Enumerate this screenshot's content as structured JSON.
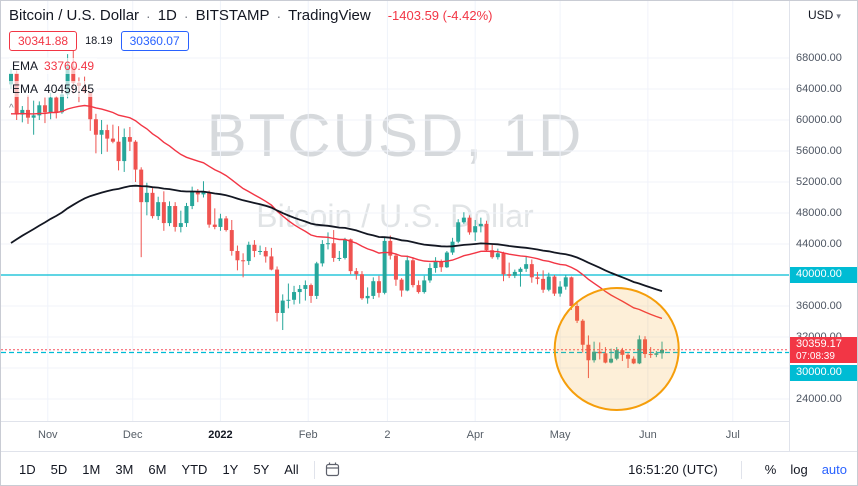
{
  "header": {
    "symbol_title": "Bitcoin / U.S. Dollar",
    "separator": "·",
    "interval": "1D",
    "exchange": "BITSTAMP",
    "brand": "TradingView",
    "change": "-1403.59 (-4.42%)",
    "currency": "USD"
  },
  "quote": {
    "bid": "30341.88",
    "spread": "18.19",
    "ask": "30360.07"
  },
  "indicators": [
    {
      "label": "EMA",
      "value": "33760.49",
      "color": "#f23645",
      "period": 35,
      "seed": 60500
    },
    {
      "label": "EMA",
      "value": "40459.45",
      "color": "#131722",
      "period": 70,
      "seed": 43500
    }
  ],
  "watermark": {
    "line1": "BTCUSD, 1D",
    "line2": "Bitcoin / U.S. Dollar"
  },
  "icons": {
    "gear": "⚙",
    "caret_down": "▾",
    "legend_collapse": "^"
  },
  "toolbar": {
    "ranges": [
      "1D",
      "5D",
      "1M",
      "3M",
      "6M",
      "YTD",
      "1Y",
      "5Y",
      "All"
    ],
    "clock": "16:51:20 (UTC)",
    "percent": "%",
    "log": "log",
    "auto": "auto"
  },
  "colors": {
    "up": "#26a69a",
    "down": "#ef5350",
    "accent_red": "#f23645",
    "accent_blue": "#2962ff",
    "level_cyan": "#00bcd4",
    "highlight_orange": "#f59e0b"
  },
  "chart_data": {
    "type": "candlestick",
    "symbol": "BTCUSD",
    "interval": "1D",
    "ylim": [
      24000,
      68000
    ],
    "grid_step": 4000,
    "price_labels": [
      {
        "text": "68000.00",
        "value": 68000
      },
      {
        "text": "64000.00",
        "value": 64000
      },
      {
        "text": "60000.00",
        "value": 60000
      },
      {
        "text": "56000.00",
        "value": 56000
      },
      {
        "text": "52000.00",
        "value": 52000
      },
      {
        "text": "48000.00",
        "value": 48000
      },
      {
        "text": "44000.00",
        "value": 44000
      },
      {
        "text": "36000.00",
        "value": 36000
      },
      {
        "text": "32000.00",
        "value": 32000
      },
      {
        "text": "24000.00",
        "value": 24000
      }
    ],
    "axis_badges": {
      "level_upper": {
        "text": "40000.00",
        "value": 40000,
        "bg": "#00bcd4"
      },
      "last": {
        "price_text": "30359.17",
        "countdown_text": "07:08:39",
        "value": 30359.17,
        "bg": "#f23645"
      },
      "level_lower": {
        "text": "30000.00",
        "value": 30000,
        "bg": "#00bcd4"
      }
    },
    "time_labels": [
      {
        "text": "Nov",
        "i": 6.5
      },
      {
        "text": "Dec",
        "i": 21.5
      },
      {
        "text": "2022",
        "i": 37,
        "strong": true
      },
      {
        "text": "Feb",
        "i": 52.5
      },
      {
        "text": "2",
        "i": 66.5
      },
      {
        "text": "Apr",
        "i": 82
      },
      {
        "text": "May",
        "i": 97
      },
      {
        "text": "Jun",
        "i": 112.5
      },
      {
        "text": "Jul",
        "i": 127.5
      }
    ],
    "levels": [
      {
        "price": 40000,
        "color": "#00bcd4",
        "style": "solid"
      },
      {
        "price": 30000,
        "color": "#00bcd4",
        "style": "dashed"
      }
    ],
    "last_price": 30359.17,
    "annotation_circle": {
      "center_index": 107,
      "center_price": 30450,
      "radius_px": 62,
      "color": "#f59e0b"
    },
    "candles": [
      [
        64600,
        66600,
        64000,
        66000
      ],
      [
        66000,
        66400,
        60000,
        60700
      ],
      [
        60700,
        61800,
        59700,
        61300
      ],
      [
        61300,
        63200,
        59500,
        60300
      ],
      [
        60300,
        62500,
        58100,
        60600
      ],
      [
        60600,
        62400,
        60000,
        61900
      ],
      [
        61900,
        62900,
        59600,
        61000
      ],
      [
        61000,
        63500,
        60100,
        62900
      ],
      [
        62900,
        63100,
        60200,
        61000
      ],
      [
        61000,
        63600,
        60800,
        63300
      ],
      [
        63300,
        68500,
        62800,
        66900
      ],
      [
        66900,
        69000,
        63400,
        64800
      ],
      [
        64800,
        65500,
        62300,
        64400
      ],
      [
        64400,
        65600,
        63400,
        63600
      ],
      [
        63600,
        63700,
        58600,
        60100
      ],
      [
        60100,
        60800,
        55700,
        58100
      ],
      [
        58100,
        60000,
        55600,
        58700
      ],
      [
        58700,
        59400,
        55900,
        57600
      ],
      [
        57600,
        59400,
        57000,
        57200
      ],
      [
        57200,
        59200,
        53500,
        54700
      ],
      [
        54700,
        58900,
        53300,
        57800
      ],
      [
        57800,
        59100,
        56000,
        57200
      ],
      [
        57200,
        57400,
        52000,
        53600
      ],
      [
        53600,
        53900,
        42300,
        49400
      ],
      [
        49400,
        51900,
        47700,
        50600
      ],
      [
        50600,
        51200,
        47300,
        47600
      ],
      [
        47600,
        50100,
        47100,
        49400
      ],
      [
        49400,
        50800,
        45700,
        46700
      ],
      [
        46700,
        49500,
        46300,
        48900
      ],
      [
        48900,
        49400,
        45600,
        46200
      ],
      [
        46200,
        48300,
        45500,
        46700
      ],
      [
        46700,
        49300,
        46200,
        48900
      ],
      [
        48900,
        51400,
        48500,
        50800
      ],
      [
        50800,
        51100,
        49400,
        50400
      ],
      [
        50400,
        52100,
        50000,
        50700
      ],
      [
        50700,
        50900,
        46100,
        46500
      ],
      [
        46500,
        48600,
        45900,
        46200
      ],
      [
        46200,
        47900,
        45700,
        47300
      ],
      [
        47300,
        47600,
        45600,
        45800
      ],
      [
        45800,
        47100,
        42500,
        43100
      ],
      [
        43100,
        43800,
        40600,
        41900
      ],
      [
        41900,
        42800,
        39700,
        41800
      ],
      [
        41800,
        44300,
        41300,
        43900
      ],
      [
        43900,
        44500,
        42300,
        43100
      ],
      [
        43100,
        43800,
        42600,
        43100
      ],
      [
        43100,
        43600,
        41600,
        42400
      ],
      [
        42400,
        43500,
        40600,
        40700
      ],
      [
        40700,
        41100,
        34000,
        35100
      ],
      [
        35100,
        37500,
        32900,
        36700
      ],
      [
        36700,
        38900,
        35700,
        36800
      ],
      [
        36800,
        38600,
        36200,
        37800
      ],
      [
        37800,
        38700,
        36300,
        38200
      ],
      [
        38200,
        39300,
        36700,
        38700
      ],
      [
        38700,
        38900,
        36400,
        37300
      ],
      [
        37300,
        41700,
        36900,
        41500
      ],
      [
        41500,
        44500,
        41100,
        44000
      ],
      [
        44000,
        45500,
        43300,
        44100
      ],
      [
        44100,
        45800,
        41700,
        42200
      ],
      [
        42200,
        43100,
        41800,
        42200
      ],
      [
        42200,
        44800,
        42000,
        44600
      ],
      [
        44600,
        44700,
        40100,
        40500
      ],
      [
        40500,
        40900,
        39400,
        40100
      ],
      [
        40100,
        40500,
        36800,
        37000
      ],
      [
        37000,
        38400,
        36300,
        37300
      ],
      [
        37300,
        39700,
        36900,
        39200
      ],
      [
        39200,
        39900,
        37100,
        37700
      ],
      [
        37700,
        44900,
        37500,
        44400
      ],
      [
        44400,
        45100,
        42000,
        42500
      ],
      [
        42500,
        42800,
        38600,
        39400
      ],
      [
        39400,
        39600,
        37200,
        38000
      ],
      [
        38000,
        42500,
        37900,
        41900
      ],
      [
        41900,
        42300,
        38400,
        38700
      ],
      [
        38700,
        39300,
        37600,
        37800
      ],
      [
        37800,
        39900,
        37600,
        39300
      ],
      [
        39300,
        41500,
        39000,
        40900
      ],
      [
        40900,
        42300,
        40300,
        41800
      ],
      [
        41800,
        42000,
        40400,
        41000
      ],
      [
        41000,
        43100,
        40900,
        42900
      ],
      [
        42900,
        44800,
        42600,
        44300
      ],
      [
        44300,
        47200,
        44100,
        46800
      ],
      [
        46800,
        48100,
        46600,
        47400
      ],
      [
        47400,
        47700,
        45200,
        45500
      ],
      [
        45500,
        47100,
        44400,
        46300
      ],
      [
        46300,
        47400,
        45500,
        46600
      ],
      [
        46600,
        47000,
        43100,
        43200
      ],
      [
        43200,
        43900,
        42100,
        42300
      ],
      [
        42300,
        43400,
        42000,
        42800
      ],
      [
        42800,
        43000,
        39200,
        40100
      ],
      [
        40100,
        41600,
        39600,
        39900
      ],
      [
        39900,
        40700,
        39600,
        40400
      ],
      [
        40400,
        41000,
        38500,
        40800
      ],
      [
        40800,
        42400,
        40400,
        41400
      ],
      [
        41400,
        42000,
        39000,
        39700
      ],
      [
        39700,
        40400,
        38800,
        39500
      ],
      [
        39500,
        40600,
        37700,
        38100
      ],
      [
        38100,
        40300,
        37900,
        39800
      ],
      [
        39800,
        40000,
        37300,
        37600
      ],
      [
        37600,
        39200,
        37200,
        38500
      ],
      [
        38500,
        40000,
        38100,
        39700
      ],
      [
        39700,
        39800,
        35500,
        36000
      ],
      [
        36000,
        36600,
        33800,
        34100
      ],
      [
        34100,
        34300,
        30000,
        31000
      ],
      [
        31000,
        32200,
        26700,
        29000
      ],
      [
        29000,
        31400,
        28700,
        30100
      ],
      [
        30100,
        31300,
        29100,
        29900
      ],
      [
        29900,
        30700,
        28600,
        28700
      ],
      [
        28700,
        30500,
        28600,
        29200
      ],
      [
        29200,
        30700,
        29000,
        30300
      ],
      [
        30300,
        30600,
        28900,
        29700
      ],
      [
        29700,
        29900,
        28000,
        29200
      ],
      [
        29200,
        29500,
        28500,
        28600
      ],
      [
        28600,
        32200,
        28500,
        31700
      ],
      [
        31700,
        32100,
        29300,
        29800
      ],
      [
        29800,
        30700,
        29300,
        29700
      ],
      [
        29700,
        30200,
        29400,
        29900
      ],
      [
        29900,
        31400,
        29200,
        30359.17
      ]
    ]
  }
}
